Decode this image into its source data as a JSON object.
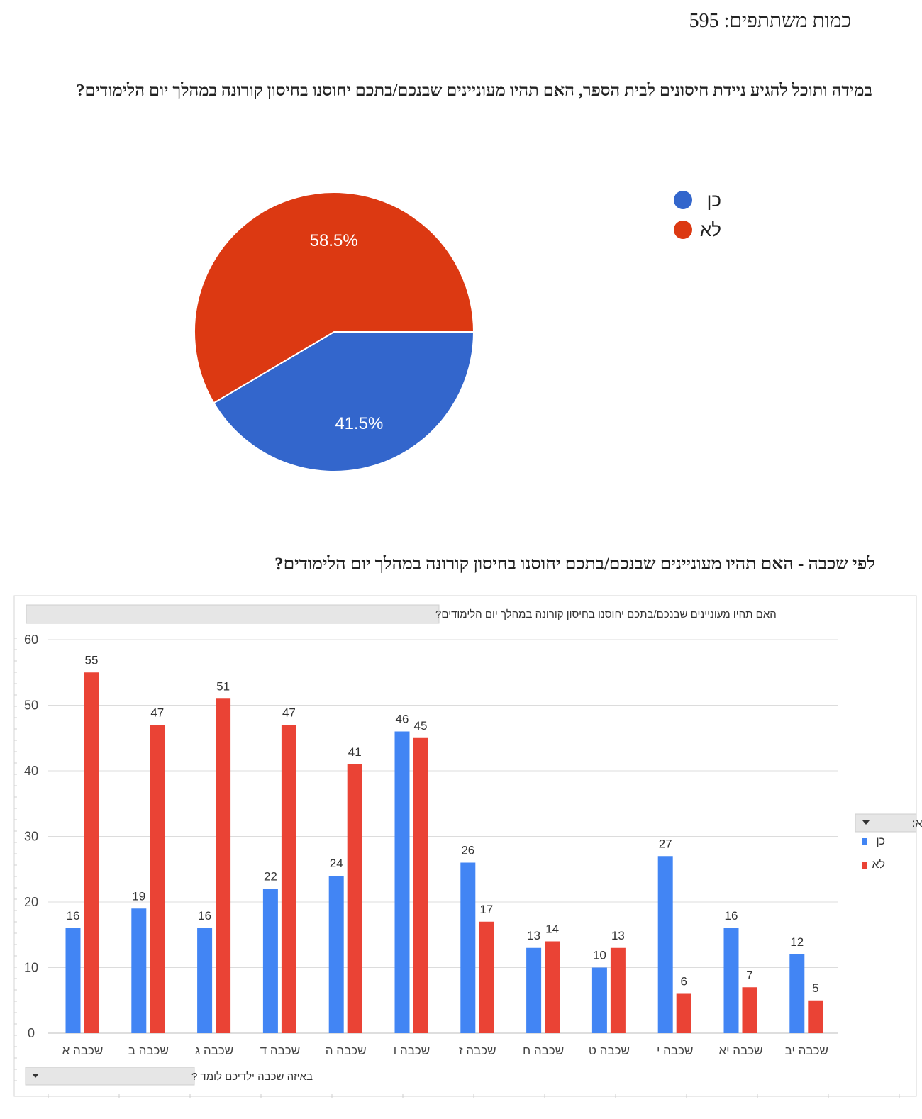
{
  "header": {
    "participants": "כמות משתתפים: 595"
  },
  "section1": {
    "title": "במידה ותוכל להגיע ניידת חיסונים לבית הספר, האם תהיו מעוניינים שבנכם/בתכם יחוסנו בחיסון קורונה במהלך יום הלימודים?"
  },
  "section2": {
    "title": "לפי שכבה - האם תהיו מעוניינים שבנכם/בתכם יחוסנו בחיסון קורונה במהלך יום הלימודים?"
  },
  "chart_data": [
    {
      "type": "pie",
      "title": "",
      "slices": [
        {
          "label": "כן",
          "value": 41.5,
          "display": "41.5%",
          "color": "#3366cc"
        },
        {
          "label": "לא",
          "value": 58.5,
          "display": "58.5%",
          "color": "#dc3912"
        }
      ],
      "legend_position": "right"
    },
    {
      "type": "bar",
      "title": "האם תהיו מעוניינים שבנכם/בתכם יחוסנו בחיסון קורונה במהלך יום הלימודים?",
      "xlabel": "באיזה שכבה ילדיכם לומד ?",
      "ylabel": "",
      "ylim": [
        0,
        60
      ],
      "yticks": [
        0,
        10,
        20,
        30,
        40,
        50,
        60
      ],
      "grid": true,
      "legend_title": "מקרא:",
      "legend_position": "right",
      "categories": [
        "שכבה א",
        "שכבה ב",
        "שכבה ג",
        "שכבה ד",
        "שכבה ה",
        "שכבה ו",
        "שכבה ז",
        "שכבה ח",
        "שכבה ט",
        "שכבה י",
        "שכבה יא",
        "שכבה יב"
      ],
      "series": [
        {
          "name": "כן",
          "color": "#4285f4",
          "values": [
            16,
            19,
            16,
            22,
            24,
            46,
            26,
            13,
            10,
            27,
            16,
            12
          ]
        },
        {
          "name": "לא",
          "color": "#ea4335",
          "values": [
            55,
            47,
            51,
            47,
            41,
            45,
            17,
            14,
            13,
            6,
            7,
            5
          ]
        }
      ]
    }
  ]
}
